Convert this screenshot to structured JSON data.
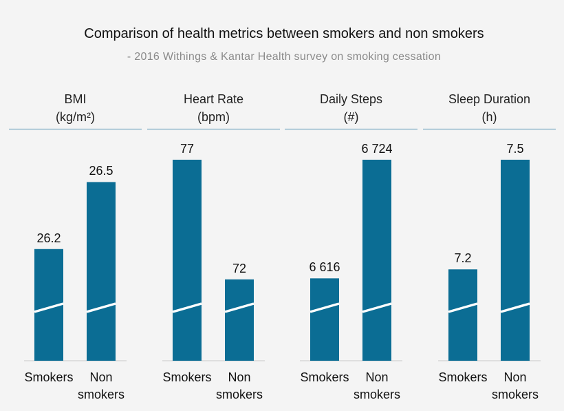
{
  "title": "Comparison of health metrics between smokers and non smokers",
  "subtitle": "- 2016 Withings & Kantar Health survey on smoking cessation",
  "colors": {
    "bar": "#0b6d94",
    "break_line": "#ffffff",
    "baseline": "#c8c8c8",
    "header_line": "#4f8fb0"
  },
  "chart_data": [
    {
      "type": "bar",
      "title": "BMI",
      "unit": "(kg/m²)",
      "categories": [
        "Smokers",
        "Non smokers"
      ],
      "category_lines": [
        [
          "Smokers"
        ],
        [
          "Non",
          "smokers"
        ]
      ],
      "values": [
        26.2,
        26.5
      ],
      "value_labels": [
        "26.2",
        "26.5"
      ],
      "axis_broken": true,
      "ylim": [
        25.7,
        26.6
      ]
    },
    {
      "type": "bar",
      "title": "Heart Rate",
      "unit": "(bpm)",
      "categories": [
        "Smokers",
        "Non smokers"
      ],
      "category_lines": [
        [
          "Smokers"
        ],
        [
          "Non",
          "smokers"
        ]
      ],
      "values": [
        77,
        72
      ],
      "value_labels": [
        "77",
        "72"
      ],
      "axis_broken": true,
      "ylim": [
        68.6,
        77
      ]
    },
    {
      "type": "bar",
      "title": "Daily Steps",
      "unit": "(#)",
      "categories": [
        "Smokers",
        "Non smokers"
      ],
      "category_lines": [
        [
          "Smokers"
        ],
        [
          "Non",
          "smokers"
        ]
      ],
      "values": [
        6616,
        6724
      ],
      "value_labels": [
        "6 616",
        "6 724"
      ],
      "axis_broken": true,
      "ylim": [
        6541,
        6724
      ]
    },
    {
      "type": "bar",
      "title": "Sleep Duration",
      "unit": "(h)",
      "categories": [
        "Smokers",
        "Non smokers"
      ],
      "category_lines": [
        [
          "Smokers"
        ],
        [
          "Non",
          "smokers"
        ]
      ],
      "values": [
        7.2,
        7.5
      ],
      "value_labels": [
        "7.2",
        "7.5"
      ],
      "axis_broken": true,
      "ylim": [
        6.95,
        7.5
      ]
    }
  ]
}
